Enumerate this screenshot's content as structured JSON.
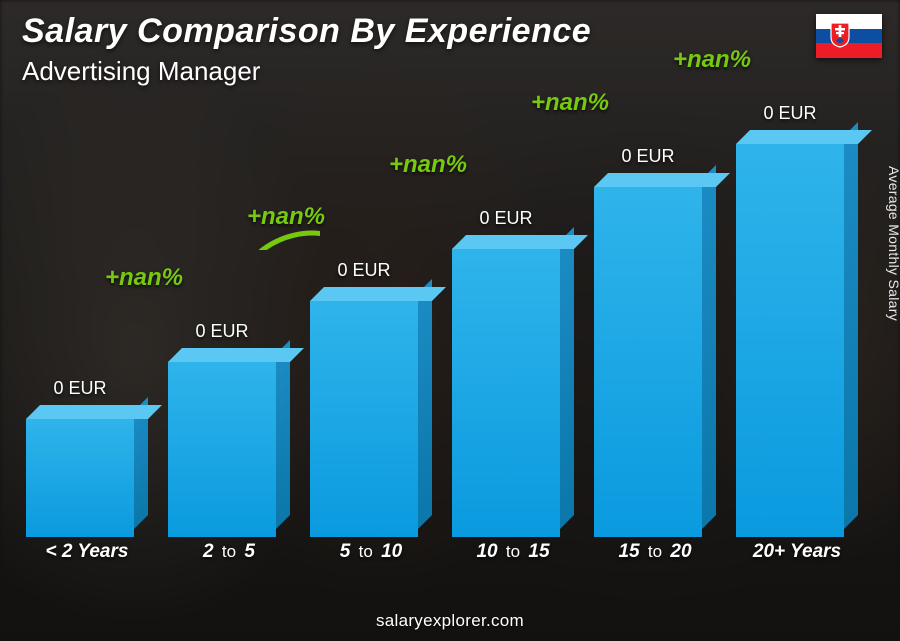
{
  "title": "Salary Comparison By Experience",
  "subtitle": "Advertising Manager",
  "ylabel": "Average Monthly Salary",
  "footer": "salaryexplorer.com",
  "flag": {
    "stripes": [
      "#ffffff",
      "#0b4ea2",
      "#ee1c25"
    ],
    "crest_shield": "#ee1c25",
    "crest_cross": "#ffffff",
    "crest_hill": "#0b4ea2"
  },
  "chart": {
    "type": "bar-3d",
    "bar_colors": {
      "front_top": "#2fb4ea",
      "front_bottom": "#0a9adf",
      "side_top": "#1c8cc4",
      "side_bottom": "#0b77aa",
      "top_face": "#5ac8f2"
    },
    "value_color": "#ffffff",
    "value_fontsize": 18,
    "xlabel_color": "#ffffff",
    "xlabel_fontsize": 19,
    "arc_color": "#77c90f",
    "arc_stroke_width": 5,
    "arc_label_fontsize": 24,
    "background_overlay": "rgba(0,0,0,0.58)",
    "bars": [
      {
        "category_html": "< 2 Years",
        "value_label": "0 EUR",
        "height_pct": 27
      },
      {
        "category_html": "2 <span class='thin'>to</span> 5",
        "value_label": "0 EUR",
        "height_pct": 40
      },
      {
        "category_html": "5 <span class='thin'>to</span> 10",
        "value_label": "0 EUR",
        "height_pct": 54
      },
      {
        "category_html": "10 <span class='thin'>to</span> 15",
        "value_label": "0 EUR",
        "height_pct": 66
      },
      {
        "category_html": "15 <span class='thin'>to</span> 20",
        "value_label": "0 EUR",
        "height_pct": 80
      },
      {
        "category_html": "20+ Years",
        "value_label": "0 EUR",
        "height_pct": 90
      }
    ],
    "arcs": [
      {
        "from": 0,
        "to": 1,
        "label": "+nan%"
      },
      {
        "from": 1,
        "to": 2,
        "label": "+nan%"
      },
      {
        "from": 2,
        "to": 3,
        "label": "+nan%"
      },
      {
        "from": 3,
        "to": 4,
        "label": "+nan%"
      },
      {
        "from": 4,
        "to": 5,
        "label": "+nan%"
      }
    ]
  }
}
